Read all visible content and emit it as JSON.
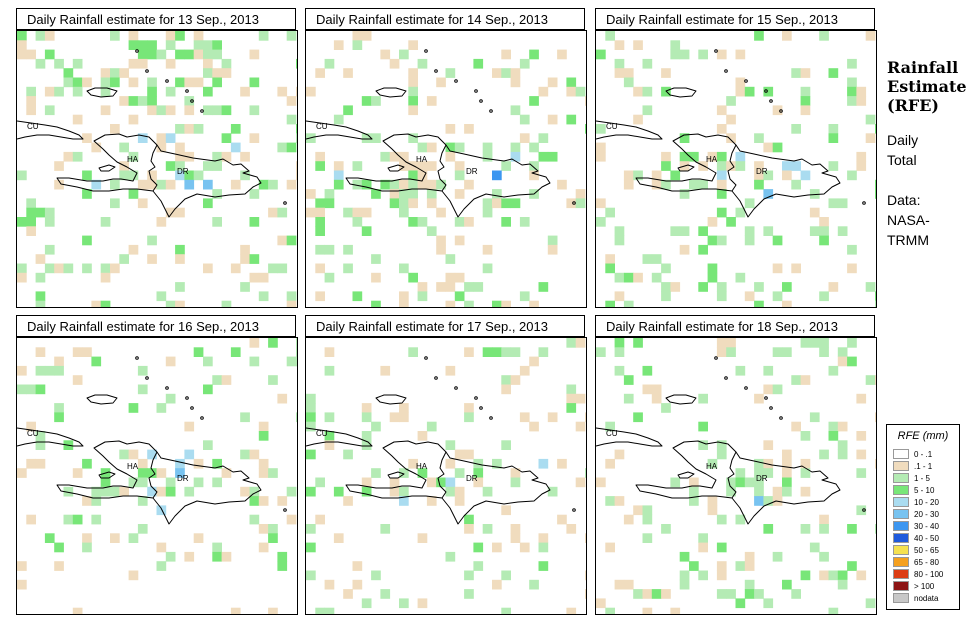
{
  "panels": [
    {
      "title": "Daily Rainfall estimate for  13 Sep., 2013",
      "day": 13
    },
    {
      "title": "Daily Rainfall estimate for  14 Sep., 2013",
      "day": 14
    },
    {
      "title": "Daily Rainfall estimate for  15 Sep., 2013",
      "day": 15
    },
    {
      "title": "Daily Rainfall estimate for  16 Sep., 2013",
      "day": 16
    },
    {
      "title": "Daily Rainfall estimate for  17 Sep., 2013",
      "day": 17
    },
    {
      "title": "Daily Rainfall estimate for  18 Sep., 2013",
      "day": 18
    }
  ],
  "map_labels": {
    "cuba": "CU",
    "haiti": "HA",
    "dominican_republic": "DR"
  },
  "sidebar": {
    "title_line1": "Rainfall",
    "title_line2": "Estimate",
    "title_line3": "(RFE)",
    "period_line1": "Daily",
    "period_line2": "Total",
    "source_line1": "Data:",
    "source_line2": "NASA-",
    "source_line3": "TRMM"
  },
  "legend": {
    "title": "RFE (mm)",
    "classes": [
      {
        "label": "0 - .1",
        "color": "#ffffff"
      },
      {
        "label": ".1 - 1",
        "color": "#f0dcbe"
      },
      {
        "label": "1 - 5",
        "color": "#b4ebb4"
      },
      {
        "label": "5 - 10",
        "color": "#78e678"
      },
      {
        "label": "10 - 20",
        "color": "#aadcf0"
      },
      {
        "label": "20 - 30",
        "color": "#78c3f0"
      },
      {
        "label": "30 - 40",
        "color": "#3c96f0"
      },
      {
        "label": "40 - 50",
        "color": "#1e5adc"
      },
      {
        "label": "50 - 65",
        "color": "#f5e150"
      },
      {
        "label": "65 - 80",
        "color": "#f5a01e"
      },
      {
        "label": "80 - 100",
        "color": "#dc3c14"
      },
      {
        "label": "> 100",
        "color": "#8c1414"
      },
      {
        "label": "nodata",
        "color": "#c8c8c8"
      }
    ]
  }
}
